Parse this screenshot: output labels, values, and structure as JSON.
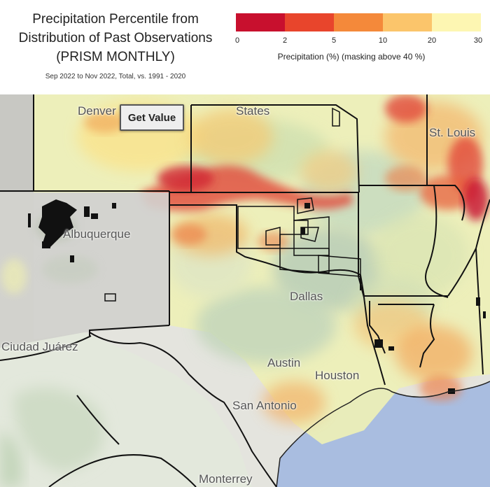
{
  "header": {
    "title_line1": "Precipitation Percentile from",
    "title_line2": "Distribution of Past Observations",
    "title_line3": "(PRISM MONTHLY)",
    "subtitle": "Sep 2022 to Nov 2022, Total, vs. 1991 - 2020"
  },
  "legend": {
    "ticks": [
      "0",
      "2",
      "5",
      "10",
      "20",
      "30"
    ],
    "colors": [
      "#c8102e",
      "#e8452c",
      "#f4893a",
      "#fbc56b",
      "#fdf6b2"
    ],
    "caption": "Precipitation (%) (masking above 40 %)"
  },
  "map": {
    "get_value_label": "Get Value",
    "cities": {
      "denver": "Denver",
      "albuquerque": "Albuquerque",
      "dallas": "Dallas",
      "austin": "Austin",
      "houston": "Houston",
      "san_antonio": "San Antonio",
      "ciudad_juarez": "Ciudad Juárez",
      "monterrey": "Monterrey",
      "st_louis": "St. Louis",
      "states_fragment": "States"
    }
  }
}
